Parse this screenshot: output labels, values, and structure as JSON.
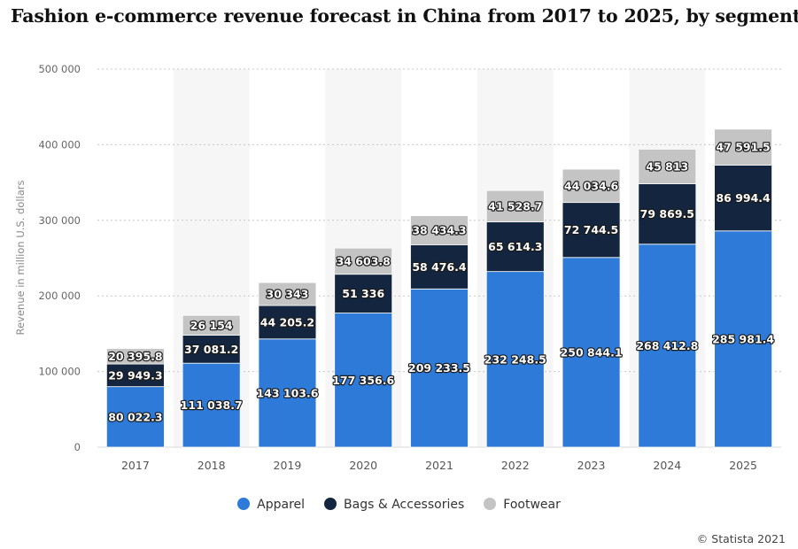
{
  "title": "Fashion e-commerce revenue forecast in China from 2017 to 2025, by segment",
  "credit": "© Statista 2021",
  "chart_data": {
    "type": "bar",
    "stacked": true,
    "title": "Fashion e-commerce revenue forecast in China from 2017 to 2025, by segment",
    "ylabel": "Revenue in million U.S. dollars",
    "xlabel": "",
    "ylim": [
      0,
      500000
    ],
    "yticks": [
      0,
      100000,
      200000,
      300000,
      400000,
      500000
    ],
    "ytick_labels": [
      "0",
      "100 000",
      "200 000",
      "300 000",
      "400 000",
      "500 000"
    ],
    "grid": "horizontal dotted",
    "legend_position": "bottom",
    "categories": [
      "2017",
      "2018",
      "2019",
      "2020",
      "2021",
      "2022",
      "2023",
      "2024",
      "2025"
    ],
    "series": [
      {
        "name": "Apparel",
        "color": "#2e7ad8",
        "values": [
          80022.3,
          111038.7,
          143103.6,
          177356.6,
          209233.5,
          232248.5,
          250844.1,
          268412.8,
          285981.4
        ],
        "labels": [
          "80 022.3",
          "111 038.7",
          "143 103.6",
          "177 356.6",
          "209 233.5",
          "232 248.5",
          "250 844.1",
          "268 412.8",
          "285 981.4"
        ]
      },
      {
        "name": "Bags & Accessories",
        "color": "#14263f",
        "values": [
          29949.3,
          37081.2,
          44205.2,
          51336,
          58476.4,
          65614.3,
          72744.5,
          79869.5,
          86994.4
        ],
        "labels": [
          "29 949.3",
          "37 081.2",
          "44 205.2",
          "51 336",
          "58 476.4",
          "65 614.3",
          "72 744.5",
          "79 869.5",
          "86 994.4"
        ]
      },
      {
        "name": "Footwear",
        "color": "#c4c4c4",
        "values": [
          20395.8,
          26154,
          30343,
          34603.8,
          38434.3,
          41528.7,
          44034.6,
          45813,
          47591.5
        ],
        "labels": [
          "20 395.8",
          "26 154",
          "30 343",
          "34 603.8",
          "38 434.3",
          "41 528.7",
          "44 034.6",
          "45 813",
          "47 591.5"
        ]
      }
    ]
  }
}
